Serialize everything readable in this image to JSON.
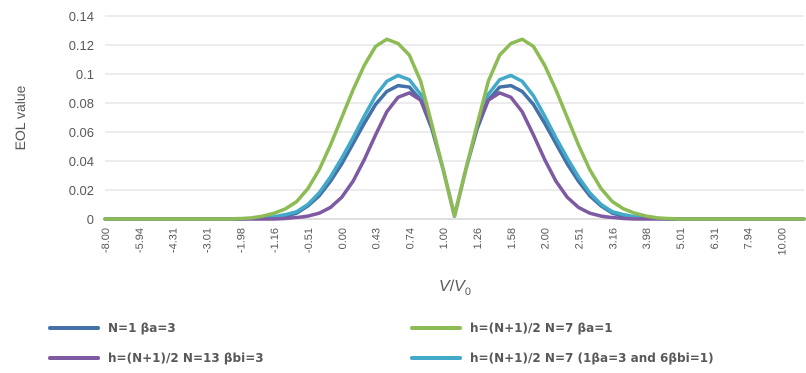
{
  "chart_data": {
    "type": "line",
    "title": "",
    "xlabel_italic": "V",
    "xlabel_slash": "/",
    "xlabel_italic2": "V",
    "xlabel_sub": "0",
    "ylabel": "EOL value",
    "ylim": [
      0,
      0.14
    ],
    "yticks": [
      "0",
      "0.02",
      "0.04",
      "0.06",
      "0.08",
      "0.1",
      "0.12",
      "0.14"
    ],
    "grid": true,
    "legend_position": "bottom",
    "x_tick_labels": [
      "-8.00",
      "-5.94",
      "-4.31",
      "-3.01",
      "-1.98",
      "-1.16",
      "-0.51",
      "0.00",
      "0.43",
      "0.74",
      "1.00",
      "1.26",
      "1.58",
      "2.00",
      "2.51",
      "3.16",
      "3.98",
      "5.01",
      "6.31",
      "7.94",
      "10.00"
    ],
    "x_tick_every": 3,
    "series": [
      {
        "name": "N=1 βa=3",
        "color": "#4472A8",
        "values": [
          0,
          0,
          0,
          0,
          0,
          0,
          0,
          0,
          0,
          0,
          0,
          0,
          0,
          0.0002,
          0.0005,
          0.001,
          0.002,
          0.004,
          0.009,
          0.016,
          0.026,
          0.038,
          0.052,
          0.066,
          0.079,
          0.088,
          0.092,
          0.091,
          0.082,
          0.062,
          0.034,
          0.002,
          0.034,
          0.062,
          0.082,
          0.091,
          0.092,
          0.088,
          0.079,
          0.066,
          0.052,
          0.038,
          0.026,
          0.016,
          0.009,
          0.004,
          0.002,
          0.001,
          0.0005,
          0.0002,
          0,
          0,
          0,
          0,
          0,
          0,
          0,
          0,
          0,
          0,
          0,
          0,
          0
        ]
      },
      {
        "name": "h=(N+1)/2 N=7 βa=1",
        "color": "#8DBB54",
        "values": [
          0,
          0,
          0,
          0,
          0,
          0,
          0,
          0,
          0,
          0,
          0,
          0,
          0.0003,
          0.0008,
          0.002,
          0.004,
          0.007,
          0.012,
          0.021,
          0.034,
          0.051,
          0.07,
          0.089,
          0.106,
          0.119,
          0.124,
          0.121,
          0.113,
          0.095,
          0.065,
          0.034,
          0.002,
          0.034,
          0.065,
          0.095,
          0.113,
          0.121,
          0.124,
          0.119,
          0.106,
          0.089,
          0.07,
          0.051,
          0.034,
          0.021,
          0.012,
          0.007,
          0.004,
          0.002,
          0.0008,
          0.0003,
          0,
          0,
          0,
          0,
          0,
          0,
          0,
          0,
          0,
          0,
          0,
          0
        ]
      },
      {
        "name": "h=(N+1)/2 N=13 βbi=3",
        "color": "#7E5AA2",
        "values": [
          0,
          0,
          0,
          0,
          0,
          0,
          0,
          0,
          0,
          0,
          0,
          0,
          0,
          0,
          0,
          0,
          0.0003,
          0.001,
          0.002,
          0.004,
          0.008,
          0.015,
          0.026,
          0.041,
          0.058,
          0.074,
          0.084,
          0.087,
          0.082,
          0.064,
          0.034,
          0.002,
          0.034,
          0.064,
          0.082,
          0.087,
          0.084,
          0.074,
          0.058,
          0.041,
          0.026,
          0.015,
          0.008,
          0.004,
          0.002,
          0.001,
          0.0003,
          0,
          0,
          0,
          0,
          0,
          0,
          0,
          0,
          0,
          0,
          0,
          0,
          0,
          0,
          0,
          0
        ]
      },
      {
        "name": "h=(N+1)/2 N=7 (1βa=3 and 6βbi=1)",
        "color": "#42A9C9",
        "values": [
          0,
          0,
          0,
          0,
          0,
          0,
          0,
          0,
          0,
          0,
          0,
          0,
          0,
          0.0003,
          0.0007,
          0.0015,
          0.003,
          0.005,
          0.01,
          0.018,
          0.029,
          0.042,
          0.056,
          0.071,
          0.085,
          0.095,
          0.099,
          0.096,
          0.086,
          0.064,
          0.034,
          0.002,
          0.034,
          0.064,
          0.086,
          0.096,
          0.099,
          0.095,
          0.085,
          0.071,
          0.056,
          0.042,
          0.029,
          0.018,
          0.01,
          0.005,
          0.003,
          0.0015,
          0.0007,
          0.0003,
          0,
          0,
          0,
          0,
          0,
          0,
          0,
          0,
          0,
          0,
          0,
          0,
          0
        ]
      }
    ]
  }
}
